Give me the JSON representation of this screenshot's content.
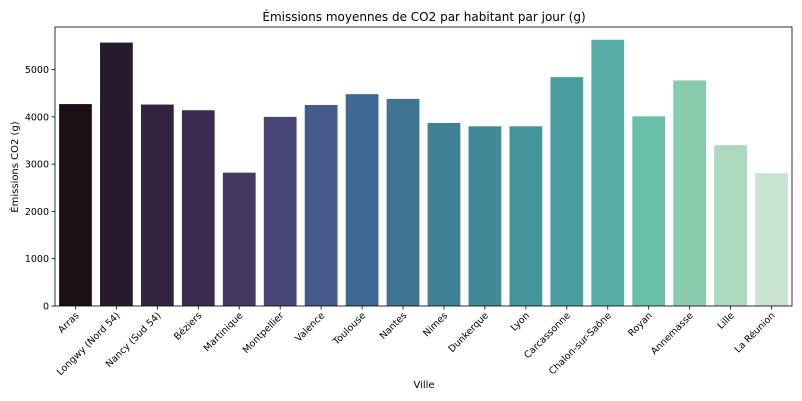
{
  "chart_data": {
    "type": "bar",
    "title": "Émissions moyennes de CO2 par habitant par jour (g)",
    "xlabel": "Ville",
    "ylabel": "Émissions CO2 (g)",
    "ylim": [
      0,
      5900
    ],
    "yticks": [
      0,
      1000,
      2000,
      3000,
      4000,
      5000
    ],
    "grid": false,
    "categories": [
      "Arras",
      "Longwy (Nord 54)",
      "Nancy (Sud 54)",
      "Béziers",
      "Martinique",
      "Montpellier",
      "Valence",
      "Toulouse",
      "Nantes",
      "Nimes",
      "Dunkerque",
      "Lyon",
      "Carcassonne",
      "Chalon-sur-Saône",
      "Royan",
      "Annemasse",
      "Lille",
      "La Réunion"
    ],
    "values": [
      4270,
      5570,
      4260,
      4140,
      2820,
      4000,
      4250,
      4480,
      4380,
      3870,
      3800,
      3800,
      4840,
      5630,
      4010,
      4770,
      3400,
      2810
    ],
    "colors": [
      "#1c0f17",
      "#271a2d",
      "#33233e",
      "#3c2c50",
      "#443862",
      "#484778",
      "#465a8a",
      "#416892",
      "#3f7593",
      "#3f8196",
      "#408a98",
      "#43949b",
      "#4a9e9f",
      "#55ada5",
      "#6abfa8",
      "#88cbad",
      "#acd8bd",
      "#c9e5d2"
    ]
  }
}
